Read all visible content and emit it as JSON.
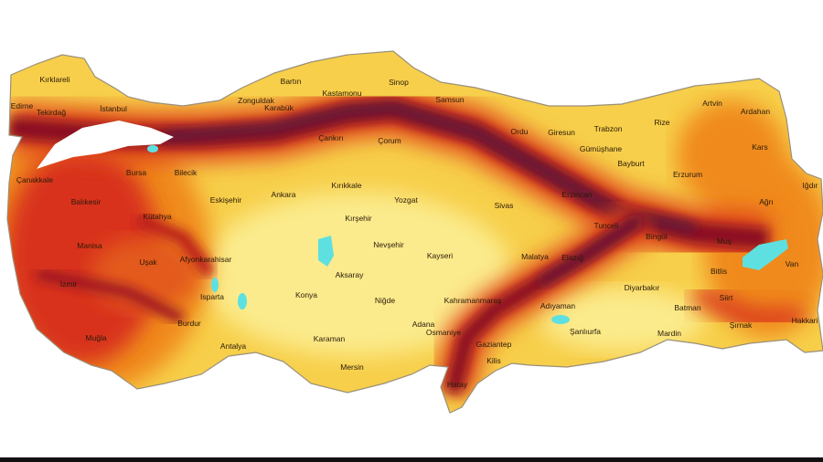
{
  "map": {
    "country": "Turkey",
    "colors": {
      "low": "#fbeb8c",
      "moderate": "#f6c33c",
      "elevated": "#f08a1c",
      "high": "#d8311a",
      "very_high": "#8a1022",
      "extreme": "#5e1a3c",
      "water": "#5fe0e0",
      "border": "#9a8f7a"
    },
    "labels": [
      "Kırklareli",
      "Edirne",
      "Tekirdağ",
      "İstanbul",
      "Zonguldak",
      "Bartın",
      "Karabük",
      "Kastamonu",
      "Sinop",
      "Samsun",
      "Ordu",
      "Giresun",
      "Trabzon",
      "Gümüşhane",
      "Bayburt",
      "Rize",
      "Artvin",
      "Ardahan",
      "Kars",
      "Erzurum",
      "Iğdır",
      "Ağrı",
      "Erzincan",
      "Çankırı",
      "Çorum",
      "Kırıkkale",
      "Bilecik",
      "Bursa",
      "Çanakkale",
      "Balıkesir",
      "Kütahya",
      "Eskişehir",
      "Ankara",
      "Yozgat",
      "Kırşehir",
      "Sivas",
      "Nevşehir",
      "Kayseri",
      "Tunceli",
      "Bingöl",
      "Muş",
      "Van",
      "Bitlis",
      "Elazığ",
      "Malatya",
      "Manisa",
      "Uşak",
      "Afyonkarahisar",
      "İzmir",
      "Muğla",
      "Isparta",
      "Burdur",
      "Antalya",
      "Konya",
      "Aksaray",
      "Niğde",
      "Karaman",
      "Mersin",
      "Adana",
      "Osmaniye",
      "Kahramanmaraş",
      "Gaziantep",
      "Kilis",
      "Hatay",
      "Adıyaman",
      "Şanlıurfa",
      "Diyarbakır",
      "Batman",
      "Mardin",
      "Siirt",
      "Şırnak",
      "Hakkari"
    ]
  }
}
